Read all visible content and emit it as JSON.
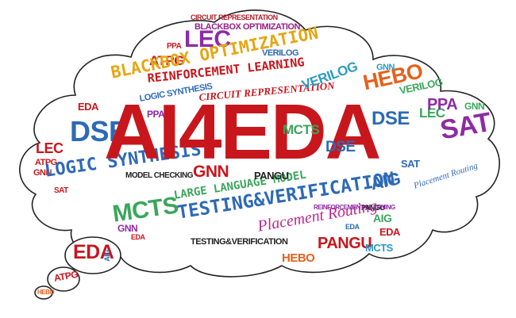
{
  "cloud": {
    "outline_color": "#222222",
    "fill_color": "#ffffff"
  },
  "words": [
    {
      "key": "ai4eda",
      "text": "AI4EDA",
      "color": "#c8161d"
    },
    {
      "key": "circuit_rep_top",
      "text": "CIRCUIT REPRESENTATION",
      "color": "#b01f2b"
    },
    {
      "key": "blackbox_opt_top",
      "text": "BLACKBOX OPTIMIZATION",
      "color": "#9b1f8a"
    },
    {
      "key": "blackbox_opt_main",
      "text": "BLACKBOX OPTIMIZATION",
      "color": "#e5a612"
    },
    {
      "key": "lec_top",
      "text": "LEC",
      "color": "#8e2aa5"
    },
    {
      "key": "atpg_top",
      "text": "ATPG",
      "color": "#c8161d"
    },
    {
      "key": "ppa_top",
      "text": "PPA",
      "color": "#c8161d"
    },
    {
      "key": "verilog_top",
      "text": "VERILOG",
      "color": "#2d6ab6"
    },
    {
      "key": "reinforcement_main",
      "text": "REINFORCEMENT LEARNING",
      "color": "#c8161d"
    },
    {
      "key": "circuit_rep_mid",
      "text": "CIRCUIT REPRESENTATION",
      "color": "#c8161d"
    },
    {
      "key": "logic_synthesis_small",
      "text": "LOGIC SYNTHESIS",
      "color": "#2d6ab6"
    },
    {
      "key": "verilog_mid",
      "text": "VERILOG",
      "color": "#2b9ac2"
    },
    {
      "key": "hebo_right",
      "text": "HEBO",
      "color": "#e5611b"
    },
    {
      "key": "gnn_right",
      "text": "GNN",
      "color": "#2b9ac2"
    },
    {
      "key": "verilog_right",
      "text": "VERILOG",
      "color": "#3aa65b"
    },
    {
      "key": "lec_right",
      "text": "LEC",
      "color": "#3aa65b"
    },
    {
      "key": "ppa_right",
      "text": "PPA",
      "color": "#8e2aa5"
    },
    {
      "key": "gnn_far_right",
      "text": "GNN",
      "color": "#3aa65b"
    },
    {
      "key": "sat_right",
      "text": "SAT",
      "color": "#8e2aa5"
    },
    {
      "key": "dse_left",
      "text": "DSE",
      "color": "#2d6ab6"
    },
    {
      "key": "eda_left",
      "text": "EDA",
      "color": "#c8161d"
    },
    {
      "key": "lec_left",
      "text": "LEC",
      "color": "#c8161d"
    },
    {
      "key": "ppa_left",
      "text": "PPA",
      "color": "#8e2aa5"
    },
    {
      "key": "logic_synthesis_main",
      "text": "LOGIC SYNTHESIS",
      "color": "#2d6ab6"
    },
    {
      "key": "model_checking",
      "text": "MODEL CHECKING",
      "color": "#222222"
    },
    {
      "key": "gnn_mid",
      "text": "GNN",
      "color": "#c8161d"
    },
    {
      "key": "large_language_model",
      "text": "LARGE LANGUAGE MODEL",
      "color": "#3aa65b"
    },
    {
      "key": "testing_verification_main",
      "text": "TESTING&VERIFICATION",
      "color": "#2d6ab6"
    },
    {
      "key": "aig_mid",
      "text": "AIG",
      "color": "#2d6ab6"
    },
    {
      "key": "mcts_mid",
      "text": "MCTS",
      "color": "#3aa65b"
    },
    {
      "key": "dse_mid",
      "text": "DSE",
      "color": "#2d6ab6"
    },
    {
      "key": "pangu_mid",
      "text": "PANGU",
      "color": "#222222"
    },
    {
      "key": "sat_mid",
      "text": "SAT",
      "color": "#2d6ab6"
    },
    {
      "key": "placement_routing_main",
      "text": "Placement Routing",
      "color": "#c0258c"
    },
    {
      "key": "placement_routing_right",
      "text": "Placement Routing",
      "color": "#2d6ab6"
    },
    {
      "key": "pangu_bottom",
      "text": "PANGU",
      "color": "#c8161d"
    },
    {
      "key": "hebo_bottom",
      "text": "HEBO",
      "color": "#e5611b"
    },
    {
      "key": "mcts_bottom",
      "text": "MCTS",
      "color": "#2b9ac2"
    },
    {
      "key": "eda_bottom",
      "text": "EDA",
      "color": "#c8161d"
    },
    {
      "key": "testing_small",
      "text": "TESTING&VERIFICATION",
      "color": "#222222"
    },
    {
      "key": "aig_right_bottom",
      "text": "AIG",
      "color": "#3aa65b"
    },
    {
      "key": "eda_right",
      "text": "EDA",
      "color": "#2d6ab6"
    },
    {
      "key": "eda_bubble",
      "text": "EDA",
      "color": "#c8161d"
    },
    {
      "key": "aig_bubble",
      "text": "AIG",
      "color": "#2d6ab6"
    },
    {
      "key": "atpg_bubble",
      "text": "ATPG",
      "color": "#c8161d"
    },
    {
      "key": "hebo_bubble",
      "text": "HEBO",
      "color": "#e5611b"
    },
    {
      "key": "mcts_left",
      "text": "MCTS",
      "color": "#3aa65b"
    },
    {
      "key": "atpg_left",
      "text": "ATPG",
      "color": "#c8161d"
    },
    {
      "key": "gnn_left",
      "text": "GNN",
      "color": "#c8161d"
    },
    {
      "key": "sat_left",
      "text": "SAT",
      "color": "#c8161d"
    },
    {
      "key": "dse_right",
      "text": "DSE",
      "color": "#2d6ab6"
    },
    {
      "key": "pangu_small",
      "text": "PANGU",
      "color": "#222222"
    },
    {
      "key": "reinforcement_small",
      "text": "REINFORCEMENT LEARNING",
      "color": "#8e2aa5"
    },
    {
      "key": "gnn_small2",
      "text": "GNN",
      "color": "#8e2aa5"
    },
    {
      "key": "eda_small2",
      "text": "EDA",
      "color": "#c8161d"
    }
  ]
}
